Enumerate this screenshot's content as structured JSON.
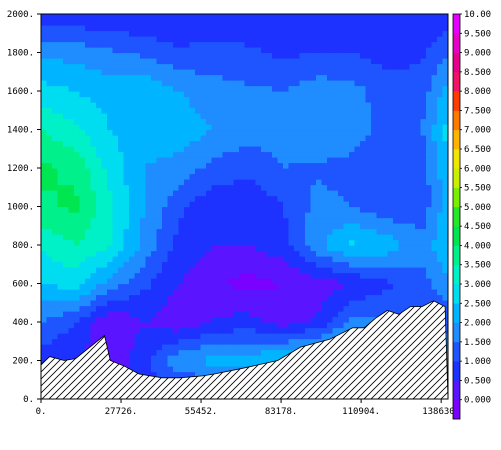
{
  "chart_data": {
    "type": "heatmap",
    "title": "",
    "xlabel": "",
    "ylabel": "",
    "xlim": [
      0,
      141000
    ],
    "ylim": [
      0,
      2000
    ],
    "x_ticks": [
      {
        "value": 0,
        "label": "0."
      },
      {
        "value": 27726,
        "label": "27726."
      },
      {
        "value": 55452,
        "label": "55452."
      },
      {
        "value": 83178,
        "label": "83178."
      },
      {
        "value": 110904,
        "label": "110904."
      },
      {
        "value": 138630,
        "label": "138630."
      }
    ],
    "y_ticks": [
      {
        "value": 0,
        "label": "0."
      },
      {
        "value": 200,
        "label": "200."
      },
      {
        "value": 400,
        "label": "400."
      },
      {
        "value": 600,
        "label": "600."
      },
      {
        "value": 800,
        "label": "800."
      },
      {
        "value": 1000,
        "label": "1000."
      },
      {
        "value": 1200,
        "label": "1200."
      },
      {
        "value": 1400,
        "label": "1400."
      },
      {
        "value": 1600,
        "label": "1600."
      },
      {
        "value": 1800,
        "label": "1800."
      },
      {
        "value": 2000,
        "label": "2000."
      }
    ],
    "colorbar": {
      "labels": [
        "0.000",
        "0.500",
        "1.000",
        "1.500",
        "2.000",
        "2.500",
        "3.000",
        "3.500",
        "4.000",
        "4.500",
        "5.000",
        "5.500",
        "6.000",
        "6.500",
        "7.000",
        "7.500",
        "8.000",
        "8.500",
        "9.000",
        "9.500",
        "10.00"
      ],
      "colors": [
        "#7a00ff",
        "#5a14ff",
        "#1e32ff",
        "#1f55ff",
        "#1f8cff",
        "#00b4ff",
        "#00dcf0",
        "#00f0c8",
        "#00f08c",
        "#00e650",
        "#28e628",
        "#78f000",
        "#c8f000",
        "#f0e600",
        "#ffb400",
        "#ff7800",
        "#ff3c00",
        "#f01464",
        "#e6008c",
        "#e600c8",
        "#e600ff"
      ]
    },
    "terrain": {
      "pattern": "hatched",
      "x": [
        0,
        3000,
        8000,
        12000,
        22000,
        24000,
        29000,
        34000,
        42000,
        48000,
        56000,
        60000,
        70000,
        82000,
        90000,
        100000,
        108000,
        112000,
        116000,
        120000,
        124000,
        128000,
        132000,
        136000,
        140000
      ],
      "y": [
        180,
        220,
        200,
        210,
        330,
        200,
        170,
        130,
        110,
        110,
        120,
        130,
        160,
        200,
        270,
        310,
        370,
        370,
        420,
        460,
        440,
        480,
        480,
        510,
        480
      ]
    },
    "field": {
      "x": [
        0,
        12000,
        24000,
        36000,
        48000,
        60000,
        72000,
        84000,
        96000,
        108000,
        120000,
        132000,
        141000
      ],
      "y": [
        0,
        200,
        400,
        600,
        800,
        1000,
        1200,
        1400,
        1600,
        1800,
        2000
      ],
      "values": [
        [
          1.0,
          1.0,
          1.0,
          1.0,
          1.0,
          1.0,
          1.0,
          1.0,
          1.0,
          1.0,
          1.0,
          1.0,
          1.0
        ],
        [
          1.2,
          1.0,
          0.6,
          1.4,
          2.4,
          2.7,
          2.8,
          3.1,
          3.5,
          3.3,
          3.1,
          2.9,
          2.8
        ],
        [
          2.0,
          1.5,
          0.5,
          1.0,
          0.6,
          1.1,
          1.2,
          0.8,
          1.1,
          2.2,
          2.0,
          1.6,
          1.6
        ],
        [
          3.0,
          3.2,
          2.3,
          1.6,
          1.0,
          0.6,
          0.3,
          0.5,
          0.7,
          1.0,
          1.4,
          1.8,
          2.4
        ],
        [
          3.6,
          4.0,
          3.5,
          2.3,
          1.3,
          1.0,
          1.0,
          1.3,
          2.4,
          3.1,
          2.8,
          2.2,
          3.0
        ],
        [
          4.4,
          4.6,
          3.6,
          2.5,
          1.6,
          1.1,
          1.0,
          1.5,
          2.2,
          2.0,
          1.6,
          1.7,
          2.8
        ],
        [
          4.6,
          4.4,
          3.3,
          2.5,
          2.3,
          1.8,
          1.7,
          2.0,
          1.9,
          1.8,
          1.5,
          1.7,
          2.9
        ],
        [
          4.0,
          3.6,
          3.0,
          2.7,
          2.8,
          2.5,
          2.2,
          2.2,
          2.5,
          2.3,
          1.8,
          2.0,
          3.2
        ],
        [
          3.2,
          3.0,
          2.8,
          2.9,
          2.5,
          2.2,
          2.1,
          2.0,
          2.3,
          2.2,
          1.7,
          1.8,
          2.7
        ],
        [
          2.4,
          2.3,
          2.1,
          1.9,
          1.6,
          1.7,
          1.6,
          1.4,
          1.5,
          1.5,
          1.3,
          1.4,
          2.0
        ],
        [
          1.1,
          1.1,
          1.0,
          1.0,
          1.0,
          1.1,
          1.1,
          1.0,
          1.0,
          1.0,
          1.0,
          1.0,
          1.2
        ]
      ]
    }
  }
}
